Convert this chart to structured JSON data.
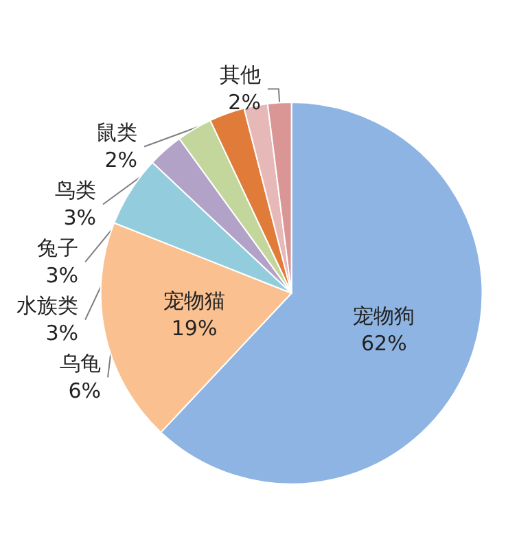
{
  "chart_data": {
    "type": "pie",
    "categories": [
      "宠物狗",
      "宠物猫",
      "乌龟",
      "水族类",
      "兔子",
      "鸟类",
      "鼠类",
      "其他"
    ],
    "values": [
      62,
      19,
      6,
      3,
      3,
      3,
      2,
      2
    ],
    "colors": [
      "#8eb4e3",
      "#fac090",
      "#93cddd",
      "#b3a2c7",
      "#c3d69b",
      "#e07b39",
      "#e6b9b8",
      "#d99694"
    ],
    "value_labels": [
      "62%",
      "19%",
      "6%",
      "3%",
      "3%",
      "3%",
      "2%",
      "2%"
    ]
  }
}
